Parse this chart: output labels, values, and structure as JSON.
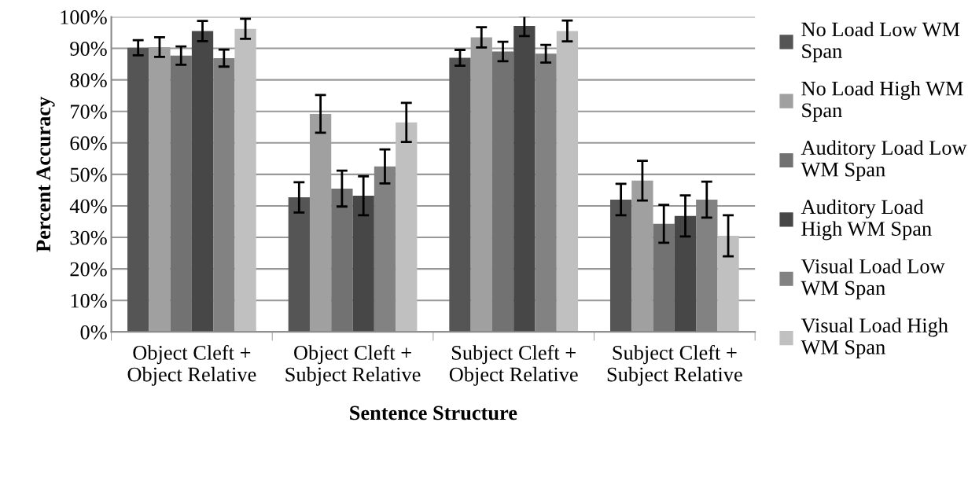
{
  "chart_data": {
    "type": "bar",
    "xlabel": "Sentence Structure",
    "ylabel": "Percent Accuracy",
    "categories": [
      "Object Cleft + Object Relative",
      "Object Cleft + Subject Relative",
      "Subject Cleft + Object Relative",
      "Subject Cleft + Subject Relative"
    ],
    "series": [
      {
        "name": "No Load Low WM Span",
        "color": "#555555",
        "values": [
          90.2,
          42.7,
          87.0,
          42.0
        ],
        "errors": [
          2.4,
          4.8,
          2.5,
          5.0
        ]
      },
      {
        "name": "No Load High WM Span",
        "color": "#a0a0a0",
        "values": [
          90.4,
          69.2,
          93.5,
          48.0
        ],
        "errors": [
          3.1,
          6.0,
          3.2,
          6.3
        ]
      },
      {
        "name": "Auditory Load Low WM Span",
        "color": "#727272",
        "values": [
          87.7,
          45.5,
          89.0,
          34.3
        ],
        "errors": [
          2.9,
          5.7,
          3.1,
          6.0
        ]
      },
      {
        "name": "Auditory Load High WM Span",
        "color": "#474747",
        "values": [
          95.5,
          43.2,
          97.1,
          36.8
        ],
        "errors": [
          3.2,
          6.2,
          3.2,
          6.5
        ]
      },
      {
        "name": "Visual Load Low WM Span",
        "color": "#828282",
        "values": [
          86.9,
          52.5,
          88.3,
          42.0
        ],
        "errors": [
          2.7,
          5.4,
          2.8,
          5.7
        ]
      },
      {
        "name": "Visual Load High WM Span",
        "color": "#c0c0c0",
        "values": [
          96.2,
          66.5,
          95.5,
          30.5
        ],
        "errors": [
          3.2,
          6.2,
          3.3,
          6.5
        ]
      }
    ],
    "ylim": [
      0,
      100
    ],
    "yticks": [
      {
        "value": 0,
        "label": "0%"
      },
      {
        "value": 10,
        "label": "10%"
      },
      {
        "value": 20,
        "label": "20%"
      },
      {
        "value": 30,
        "label": "30%"
      },
      {
        "value": 40,
        "label": "40%"
      },
      {
        "value": 50,
        "label": "50%"
      },
      {
        "value": 60,
        "label": "60%"
      },
      {
        "value": 70,
        "label": "70%"
      },
      {
        "value": 80,
        "label": "80%"
      },
      {
        "value": 90,
        "label": "90%"
      },
      {
        "value": 100,
        "label": "100%"
      }
    ],
    "grid": "y",
    "legend": "right"
  }
}
